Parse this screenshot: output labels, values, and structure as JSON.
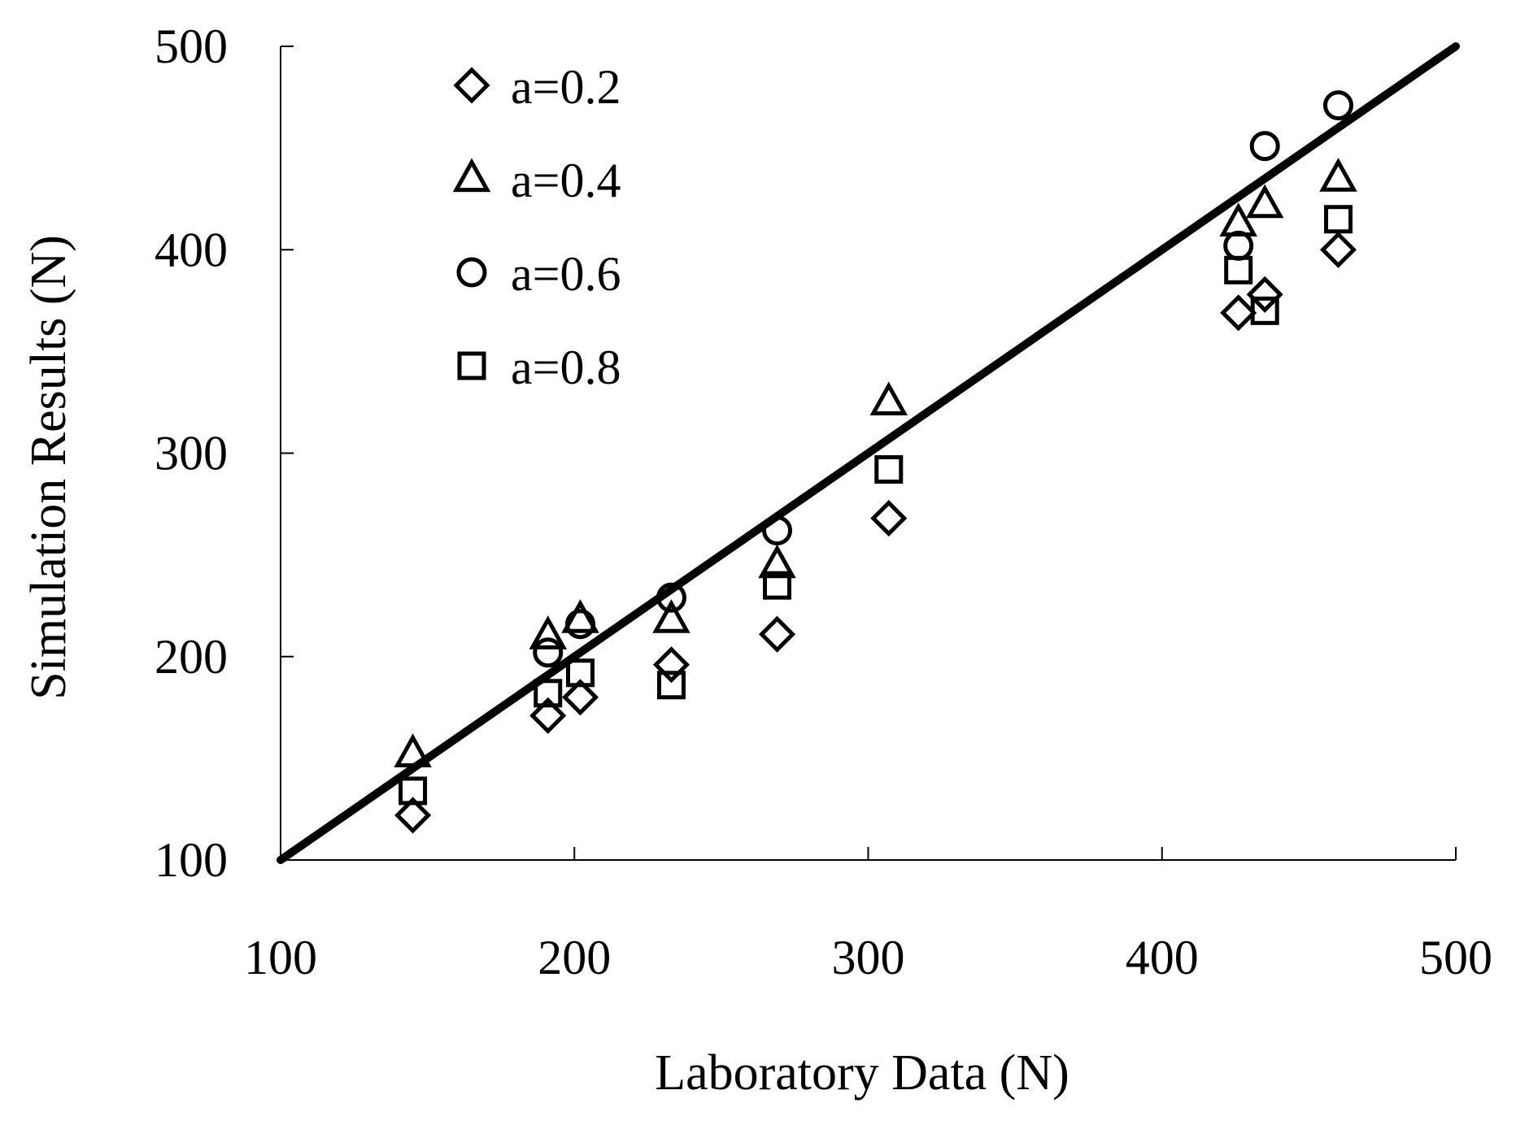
{
  "chart_data": {
    "type": "scatter",
    "xlabel": "Laboratory Data (N)",
    "ylabel": "Simulation Results (N)",
    "xlim": [
      100,
      500
    ],
    "ylim": [
      100,
      500
    ],
    "x_ticks": [
      "100",
      "200",
      "300",
      "400",
      "500"
    ],
    "y_ticks": [
      "100",
      "200",
      "300",
      "400",
      "500"
    ],
    "grid": false,
    "legend_position": "top-left",
    "reference_line": {
      "from": [
        100,
        100
      ],
      "to": [
        500,
        500
      ]
    },
    "series": [
      {
        "name": "a=0.2",
        "marker": "diamond",
        "points": [
          [
            145,
            122
          ],
          [
            191,
            171
          ],
          [
            202,
            180
          ],
          [
            233,
            196
          ],
          [
            269,
            211
          ],
          [
            307,
            268
          ],
          [
            426,
            369
          ],
          [
            435,
            378
          ],
          [
            460,
            400
          ]
        ]
      },
      {
        "name": "a=0.4",
        "marker": "triangle",
        "points": [
          [
            145,
            152
          ],
          [
            191,
            210
          ],
          [
            202,
            218
          ],
          [
            233,
            218
          ],
          [
            269,
            245
          ],
          [
            307,
            325
          ],
          [
            426,
            413
          ],
          [
            435,
            422
          ],
          [
            460,
            435
          ]
        ]
      },
      {
        "name": "a=0.6",
        "marker": "circle",
        "points": [
          [
            191,
            202
          ],
          [
            202,
            216
          ],
          [
            233,
            229
          ],
          [
            269,
            262
          ],
          [
            426,
            402
          ],
          [
            435,
            451
          ],
          [
            460,
            471
          ]
        ]
      },
      {
        "name": "a=0.8",
        "marker": "square",
        "points": [
          [
            145,
            134
          ],
          [
            191,
            182
          ],
          [
            202,
            192
          ],
          [
            233,
            186
          ],
          [
            269,
            235
          ],
          [
            307,
            292
          ],
          [
            426,
            390
          ],
          [
            435,
            370
          ],
          [
            460,
            415
          ]
        ]
      }
    ]
  }
}
